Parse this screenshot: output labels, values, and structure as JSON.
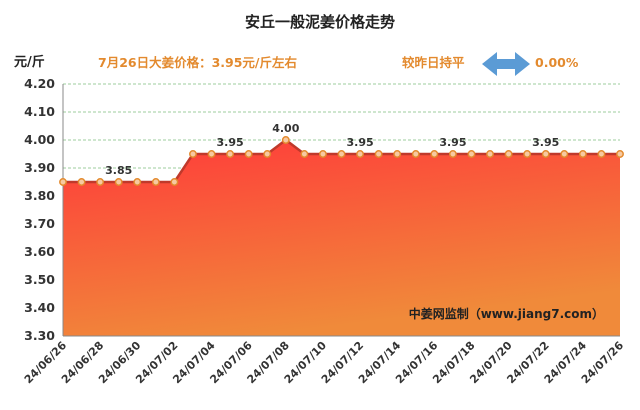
{
  "header": {
    "title": "安丘一般泥姜价格走势",
    "unit": "元/斤",
    "price_note": "7月26日大姜价格：3.95元/斤左右",
    "compare_note": "较昨日持平",
    "change_pct": "0.00%",
    "arrow_icon": "double-arrow-icon",
    "arrow_color": "#5b9bd5"
  },
  "source": "中姜网监制（www.jiang7.com）",
  "colors": {
    "area_top": "#ff3a3a",
    "area_bottom": "#f08a3a",
    "line": "#c0392b",
    "marker_fill": "#f7c9a0",
    "marker_stroke": "#e38a2e",
    "info_text": "#e38a2e"
  },
  "chart_data": {
    "type": "area",
    "x": [
      "24/06/26",
      "24/06/27",
      "24/06/28",
      "24/06/29",
      "24/06/30",
      "24/07/01",
      "24/07/02",
      "24/07/03",
      "24/07/04",
      "24/07/05",
      "24/07/06",
      "24/07/07",
      "24/07/08",
      "24/07/09",
      "24/07/10",
      "24/07/11",
      "24/07/12",
      "24/07/13",
      "24/07/14",
      "24/07/15",
      "24/07/16",
      "24/07/17",
      "24/07/18",
      "24/07/19",
      "24/07/20",
      "24/07/21",
      "24/07/22",
      "24/07/23",
      "24/07/24",
      "24/07/25",
      "24/07/26"
    ],
    "values": [
      3.85,
      3.85,
      3.85,
      3.85,
      3.85,
      3.85,
      3.85,
      3.95,
      3.95,
      3.95,
      3.95,
      3.95,
      4.0,
      3.95,
      3.95,
      3.95,
      3.95,
      3.95,
      3.95,
      3.95,
      3.95,
      3.95,
      3.95,
      3.95,
      3.95,
      3.95,
      3.95,
      3.95,
      3.95,
      3.95,
      3.95
    ],
    "x_tick_labels": [
      "24/06/26",
      "24/06/28",
      "24/06/30",
      "24/07/02",
      "24/07/04",
      "24/07/06",
      "24/07/08",
      "24/07/10",
      "24/07/12",
      "24/07/14",
      "24/07/16",
      "24/07/18",
      "24/07/20",
      "24/07/22",
      "24/07/24",
      "24/07/26"
    ],
    "y_ticks": [
      "3.30",
      "3.40",
      "3.50",
      "3.60",
      "3.70",
      "3.80",
      "3.90",
      "4.00",
      "4.10",
      "4.20"
    ],
    "ylim": [
      3.3,
      4.2
    ],
    "data_labels": [
      {
        "index": 3,
        "text": "3.85"
      },
      {
        "index": 9,
        "text": "3.95"
      },
      {
        "index": 12,
        "text": "4.00"
      },
      {
        "index": 16,
        "text": "3.95"
      },
      {
        "index": 21,
        "text": "3.95"
      },
      {
        "index": 26,
        "text": "3.95"
      }
    ],
    "grid": true,
    "legend": "none"
  }
}
